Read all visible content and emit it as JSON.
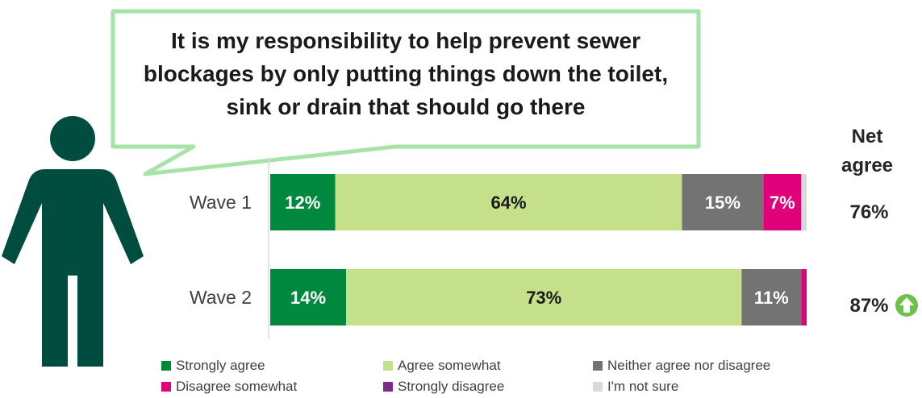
{
  "callout": {
    "lines": [
      "It is my responsibility to help prevent sewer",
      "blockages by only putting things down the toilet,",
      "sink or drain that should go there"
    ]
  },
  "net_header": [
    "Net",
    "agree"
  ],
  "icons": {
    "person": "person-icon",
    "up_arrow": "up-arrow-icon"
  },
  "colors": {
    "strongly_agree": "#00883f",
    "agree_somewhat": "#c5e08a",
    "neither": "#737373",
    "disagree_somewhat": "#e0007a",
    "strongly_disagree": "#7b2a8a",
    "not_sure": "#d9d9d9",
    "person": "#004d40",
    "callout_border": "#a6e3a6",
    "up_arrow": "#6cc24a"
  },
  "chart_data": {
    "type": "bar",
    "orientation": "horizontal",
    "stacked": true,
    "percent_stacked": true,
    "categories": [
      "Wave 1",
      "Wave 2"
    ],
    "series": [
      {
        "name": "Strongly agree",
        "values": [
          12,
          14
        ],
        "labels": [
          "12%",
          "14%"
        ]
      },
      {
        "name": "Agree somewhat",
        "values": [
          64,
          73
        ],
        "labels": [
          "64%",
          "73%"
        ]
      },
      {
        "name": "Neither agree nor disagree",
        "values": [
          15,
          11
        ],
        "labels": [
          "15%",
          "11%"
        ]
      },
      {
        "name": "Disagree somewhat",
        "values": [
          7,
          1
        ],
        "labels": [
          "7%",
          ""
        ]
      },
      {
        "name": "Strongly disagree",
        "values": [
          0,
          0
        ],
        "labels": [
          "",
          ""
        ]
      },
      {
        "name": "I'm not sure",
        "values": [
          1,
          0
        ],
        "labels": [
          "",
          ""
        ]
      }
    ],
    "net_agree": [
      "76%",
      "87%"
    ],
    "net_agree_increase": [
      false,
      true
    ],
    "legend_position": "bottom",
    "grid": false
  }
}
